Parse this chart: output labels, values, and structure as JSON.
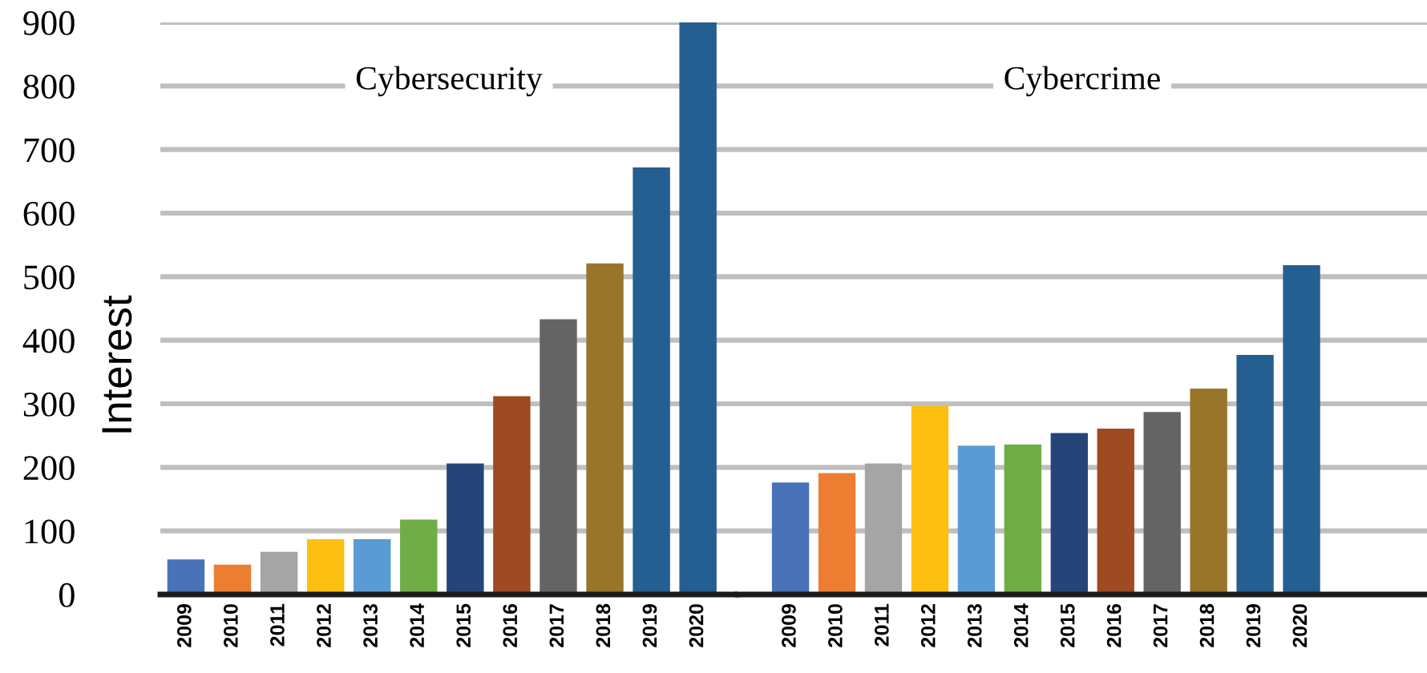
{
  "chart_data": [
    {
      "type": "bar",
      "title": "Cybersecurity",
      "ylabel": "Interest",
      "categories": [
        "2009",
        "2010",
        "2011",
        "2012",
        "2013",
        "2014",
        "2015",
        "2016",
        "2017",
        "2018",
        "2019",
        "2020"
      ],
      "values": [
        55,
        47,
        67,
        87,
        87,
        118,
        206,
        312,
        433,
        521,
        672,
        900
      ],
      "colors": [
        "#4a72b8",
        "#ed7d31",
        "#a5a5a5",
        "#fdc010",
        "#5b9bd5",
        "#70ad47",
        "#264478",
        "#9e4a22",
        "#646464",
        "#99752b",
        "#255e91",
        "#255e91"
      ],
      "ylim": [
        0,
        900
      ],
      "yticks": [
        0,
        100,
        200,
        300,
        400,
        500,
        600,
        700,
        800,
        900
      ],
      "grid": "y"
    },
    {
      "type": "bar",
      "title": "Cybercrime",
      "categories": [
        "2009",
        "2010",
        "2011",
        "2012",
        "2013",
        "2014",
        "2015",
        "2016",
        "2017",
        "2018",
        "2019",
        "2020"
      ],
      "values": [
        176,
        191,
        206,
        297,
        234,
        236,
        254,
        261,
        287,
        324,
        377,
        518
      ],
      "colors": [
        "#4a72b8",
        "#ed7d31",
        "#a5a5a5",
        "#fdc010",
        "#5b9bd5",
        "#70ad47",
        "#264478",
        "#9e4a22",
        "#646464",
        "#99752b",
        "#255e91",
        "#255e91"
      ],
      "ylim": [
        0,
        900
      ],
      "yticks": [
        0,
        100,
        200,
        300,
        400,
        500,
        600,
        700,
        800,
        900
      ],
      "grid": "y",
      "tick_labels": "x"
    }
  ]
}
